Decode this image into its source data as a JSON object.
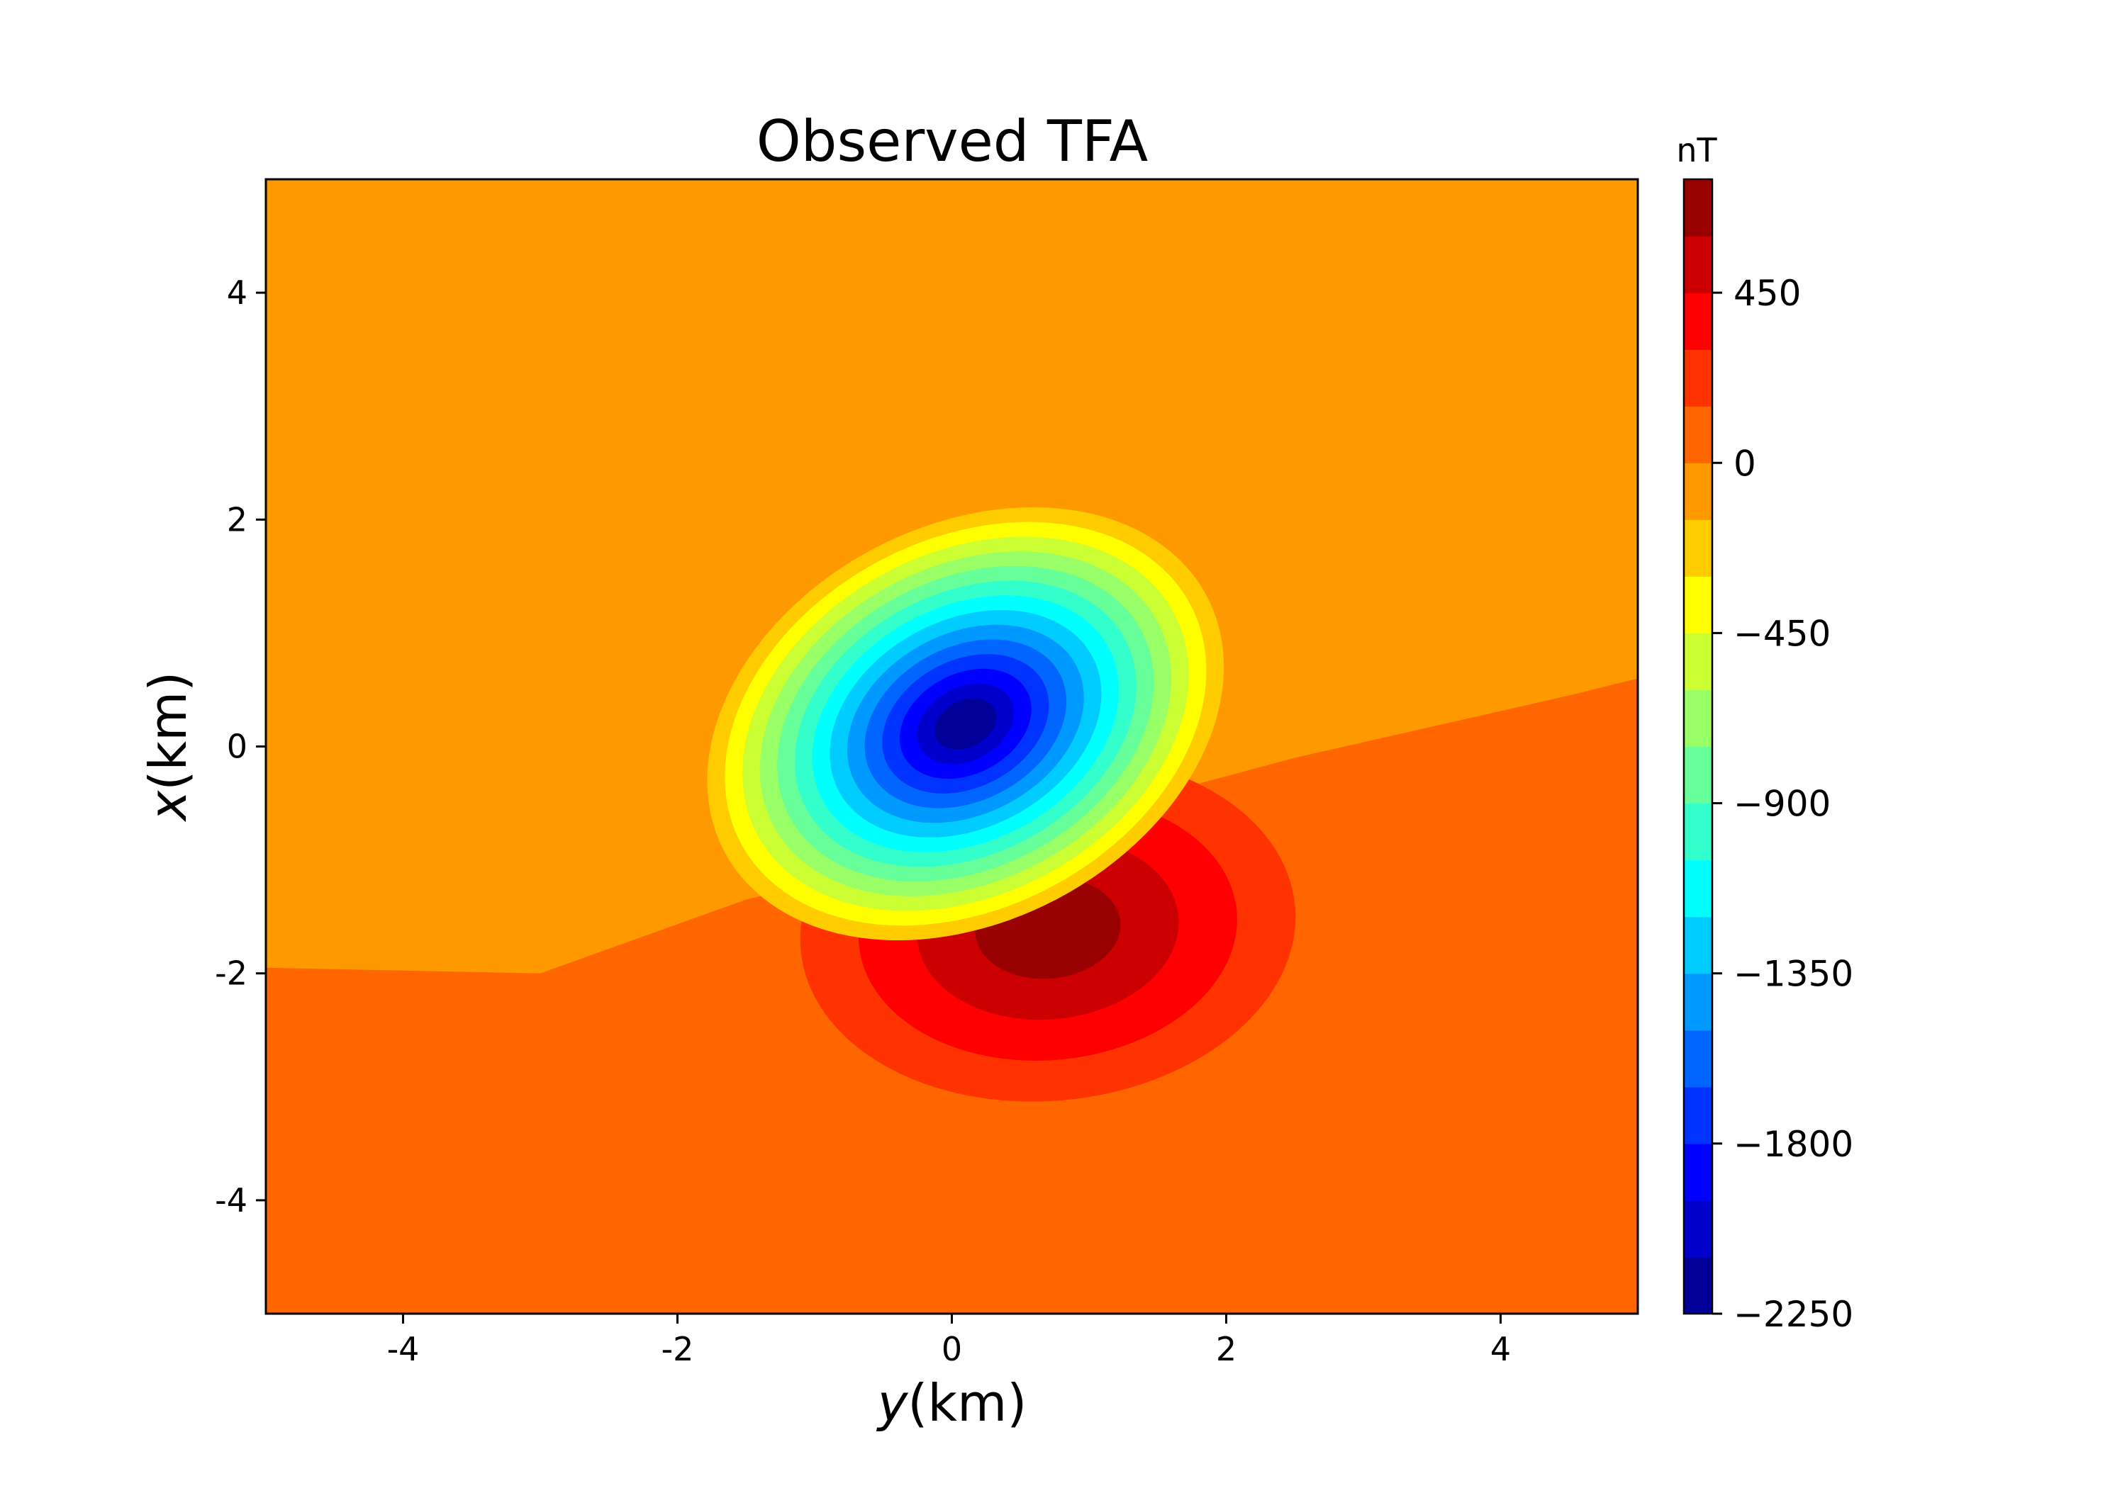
{
  "chart_data": {
    "type": "heatmap",
    "subtype": "filled-contour",
    "title": "Observed TFA",
    "xlabel_var": "y",
    "xlabel_unit": "(km)",
    "ylabel_var": "x",
    "ylabel_unit": "(km)",
    "xlim": [
      -5,
      5
    ],
    "ylim": [
      -5,
      5
    ],
    "x_ticks": [
      {
        "value": -4,
        "label": "-4"
      },
      {
        "value": -2,
        "label": "-2"
      },
      {
        "value": 0,
        "label": "0"
      },
      {
        "value": 2,
        "label": "2"
      },
      {
        "value": 4,
        "label": "4"
      }
    ],
    "y_ticks": [
      {
        "value": 4,
        "label": "4"
      },
      {
        "value": 2,
        "label": "2"
      },
      {
        "value": 0,
        "label": "0"
      },
      {
        "value": -2,
        "label": "-2"
      },
      {
        "value": -4,
        "label": "-4"
      }
    ],
    "grid": false,
    "colormap": "jet",
    "background_value": -75,
    "lower_background_value": 75,
    "colorbar": {
      "unit": "nT",
      "range": [
        -2250,
        750
      ],
      "level_step": 150,
      "ticks": [
        {
          "value": 450,
          "label": "450"
        },
        {
          "value": 0,
          "label": "0"
        },
        {
          "value": -450,
          "label": "−450"
        },
        {
          "value": -900,
          "label": "−900"
        },
        {
          "value": -1350,
          "label": "−1350"
        },
        {
          "value": -1800,
          "label": "−1800"
        },
        {
          "value": -2250,
          "label": "−2250"
        }
      ]
    },
    "anomalies": [
      {
        "name": "negative lobe",
        "y_center": 0.1,
        "x_center": 0.2,
        "min_value": -2250
      },
      {
        "name": "positive lobe",
        "y_center": 0.7,
        "x_center": -1.6,
        "max_value": 750
      }
    ]
  }
}
